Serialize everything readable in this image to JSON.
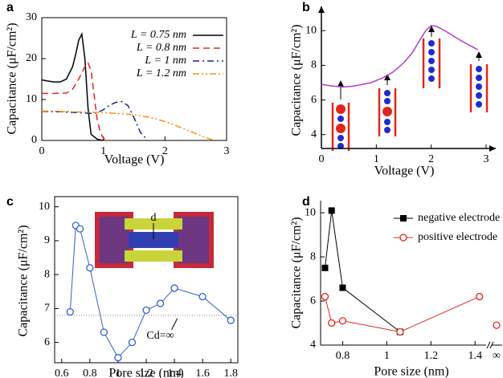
{
  "chart_data": [
    {
      "type": "line",
      "panel_label": "a",
      "xlabel": "Voltage (V)",
      "ylabel": "Capacitance (μF/cm²)",
      "xlim": [
        0,
        3
      ],
      "ylim": [
        0,
        30
      ],
      "xticks": [
        0,
        1,
        2,
        3
      ],
      "yticks": [
        0,
        10,
        20,
        30
      ],
      "series": [
        {
          "name": "L = 0.75 nm",
          "color": "#000000",
          "line_style": "solid",
          "x": [
            0,
            0.1,
            0.2,
            0.3,
            0.4,
            0.5,
            0.55,
            0.6,
            0.65,
            0.7,
            0.75,
            0.8,
            0.9,
            1.0
          ],
          "values": [
            14.8,
            14.5,
            14.3,
            14.3,
            15,
            18,
            21,
            24.5,
            26,
            20,
            8,
            1.5,
            0.3,
            0
          ]
        },
        {
          "name": "L = 0.8 nm",
          "color": "#e0261b",
          "line_style": "dashed",
          "x": [
            0,
            0.2,
            0.4,
            0.5,
            0.6,
            0.7,
            0.75,
            0.8,
            0.85,
            0.9,
            0.95,
            1.0,
            1.1
          ],
          "values": [
            11.5,
            11.5,
            11.6,
            12.5,
            15,
            18,
            19,
            17,
            11,
            5,
            2,
            0.5,
            0
          ]
        },
        {
          "name": "L = 1 nm",
          "color": "#1a237e",
          "line_style": "dashdot",
          "x": [
            0,
            0.3,
            0.6,
            0.8,
            0.9,
            1.0,
            1.1,
            1.2,
            1.3,
            1.4,
            1.5,
            1.6,
            1.7
          ],
          "values": [
            7.1,
            7,
            6.8,
            6.6,
            6.8,
            7.5,
            8.6,
            9.3,
            9.5,
            8.5,
            5.5,
            2,
            0.3
          ]
        },
        {
          "name": "L = 1.2 nm",
          "color": "#f29111",
          "line_style": "dashdotdot",
          "x": [
            0,
            0.5,
            1,
            1.5,
            1.8,
            2.0,
            2.2,
            2.4,
            2.6,
            2.8
          ],
          "values": [
            7.2,
            7.0,
            6.8,
            6.3,
            5.5,
            4.6,
            3.5,
            2.3,
            1,
            0
          ]
        }
      ]
    },
    {
      "type": "line",
      "panel_label": "b",
      "xlabel": "Voltage (V)",
      "ylabel": "Capacitance (μF/cm²)",
      "xlim": [
        0,
        3
      ],
      "ylim": [
        3.2,
        11.4
      ],
      "xticks": [
        0,
        1,
        2,
        3
      ],
      "yticks": [
        4,
        6,
        8,
        10
      ],
      "series": [
        {
          "color": "#b43cc8",
          "line_style": "solid",
          "x": [
            0,
            0.2,
            0.4,
            0.6,
            0.9,
            1.1,
            1.3,
            1.5,
            1.65,
            1.8,
            1.9,
            2.0,
            2.1,
            2.3,
            2.5,
            2.7,
            2.85
          ],
          "values": [
            6.9,
            6.8,
            6.75,
            6.8,
            7.0,
            7.25,
            7.6,
            8.15,
            8.7,
            9.5,
            10.0,
            10.3,
            10.25,
            9.9,
            9.5,
            9.15,
            8.9
          ]
        }
      ]
    },
    {
      "type": "line",
      "panel_label": "c",
      "xlabel": "Pore size (nm)",
      "ylabel": "Capacitance (μF/cm²)",
      "xlim": [
        0.55,
        1.85
      ],
      "ylim": [
        5.4,
        10.3
      ],
      "xticks": [
        0.6,
        0.8,
        1,
        1.2,
        1.4,
        1.6,
        1.8
      ],
      "yticks": [
        6,
        7,
        8,
        9,
        10
      ],
      "reference_value": 6.8,
      "reference_label": "Cd=∞",
      "inset_label": "d",
      "series": [
        {
          "color": "#2f5fd0",
          "line_style": "solid",
          "marker": "circle-open",
          "x": [
            0.66,
            0.7,
            0.73,
            0.8,
            0.9,
            1.0,
            1.1,
            1.2,
            1.3,
            1.4,
            1.6,
            1.8
          ],
          "values": [
            6.9,
            9.45,
            9.35,
            8.2,
            6.3,
            5.55,
            6.0,
            6.95,
            7.15,
            7.6,
            7.35,
            6.65
          ]
        }
      ]
    },
    {
      "type": "line",
      "panel_label": "d",
      "xlabel": "Pore size (nm)",
      "ylabel": "Capacitance (μF/cm²)",
      "xlim": [
        0.7,
        1.45
      ],
      "ylim": [
        4,
        10.55
      ],
      "xticks": [
        0.8,
        1,
        1.2,
        1.4
      ],
      "yticks": [
        4,
        6,
        8,
        10
      ],
      "x_break_label": "∞",
      "series": [
        {
          "name": "negative electrode",
          "color": "#000000",
          "line_style": "solid",
          "marker": "square",
          "x": [
            0.72,
            0.75,
            0.8,
            1.06
          ],
          "values": [
            7.5,
            10.1,
            6.6,
            4.6
          ]
        },
        {
          "name": "positive electrode",
          "color": "#e0261b",
          "line_style": "solid",
          "marker": "circle-open",
          "x": [
            0.72,
            0.75,
            0.8,
            1.06,
            1.42
          ],
          "values": [
            6.2,
            5.0,
            5.1,
            4.6,
            6.2
          ],
          "bulk_value": 4.9
        }
      ]
    }
  ]
}
